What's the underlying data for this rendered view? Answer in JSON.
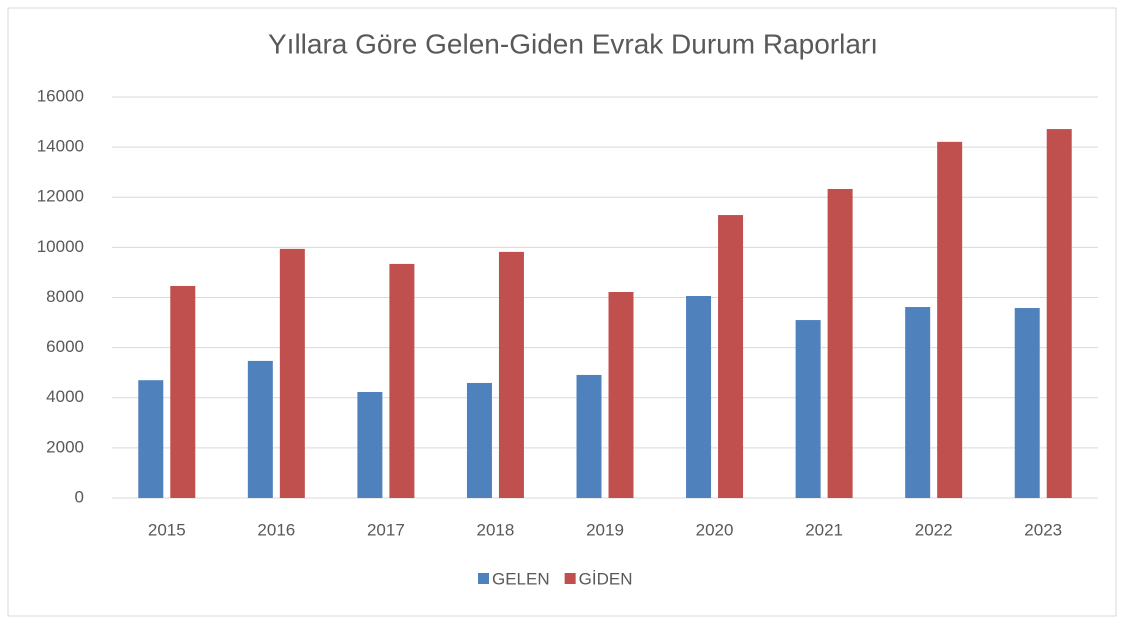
{
  "chart_data": {
    "type": "bar",
    "title": "Yıllara Göre Gelen-Giden Evrak Durum Raporları",
    "categories": [
      "2015",
      "2016",
      "2017",
      "2018",
      "2019",
      "2020",
      "2021",
      "2022",
      "2023"
    ],
    "series": [
      {
        "name": "GELEN",
        "color": "#4f81bd",
        "values": [
          4700,
          5470,
          4230,
          4590,
          4910,
          8060,
          7100,
          7620,
          7580
        ]
      },
      {
        "name": "GİDEN",
        "color": "#c0504d",
        "values": [
          8460,
          9940,
          9340,
          9820,
          8220,
          11290,
          12330,
          14210,
          14720
        ]
      }
    ],
    "ylim": [
      0,
      16000
    ],
    "yticks": [
      0,
      2000,
      4000,
      6000,
      8000,
      10000,
      12000,
      14000,
      16000
    ],
    "grid": true,
    "legend": "bottom"
  }
}
